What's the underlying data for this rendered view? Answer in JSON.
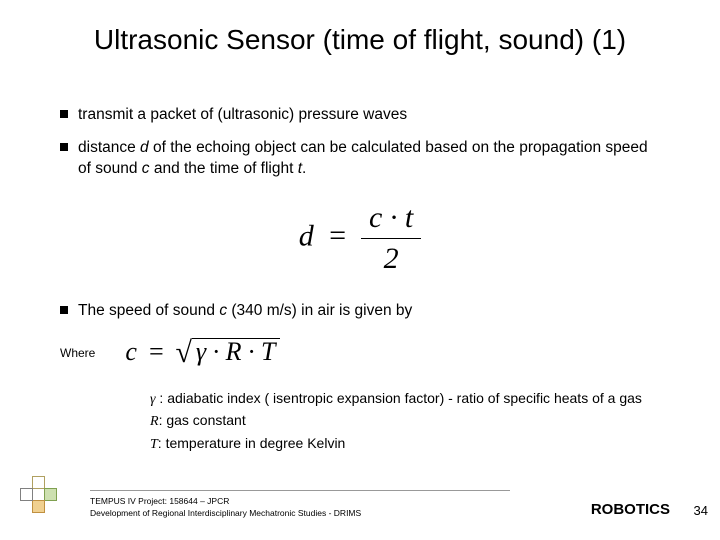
{
  "title": "Ultrasonic Sensor (time of flight, sound) (1)",
  "bullets": {
    "b1": "transmit a packet of (ultrasonic) pressure waves",
    "b2_pre": "distance ",
    "b2_d": "d",
    "b2_mid": " of the echoing object can be calculated based on the propagation speed of sound ",
    "b2_c": "c",
    "b2_mid2": " and the time of flight ",
    "b2_t": "t",
    "b2_end": ".",
    "b3_pre": "The speed of sound ",
    "b3_c": "c",
    "b3_mid": " (340 m/s) in air is given by"
  },
  "formula1": {
    "lhs": "d",
    "eq": "=",
    "num": "c · t",
    "den": "2"
  },
  "where": "Where",
  "formula2": {
    "lhs": "c",
    "eq": "=",
    "inner": "γ · R · T"
  },
  "defs": {
    "g_sym": "γ",
    "g_txt": " : adiabatic index ( isentropic expansion factor) - ratio of specific heats of a gas",
    "r_sym": "R",
    "r_txt": ": gas constant",
    "t_sym": "T",
    "t_txt": ": temperature in degree Kelvin"
  },
  "footer": {
    "line1": "TEMPUS IV Project: 158644 – JPCR",
    "line2": "Development of Regional Interdisciplinary Mechatronic Studies - DRIMS"
  },
  "footer_right": "ROBOTICS",
  "page": "34"
}
